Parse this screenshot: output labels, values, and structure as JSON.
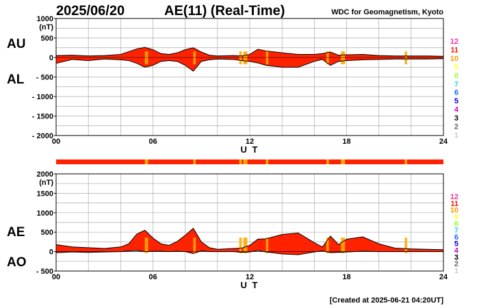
{
  "header": {
    "date": "2025/06/20",
    "title": "AE(11) (Real-Time)",
    "source": "WDC for Geomagnetism, Kyoto"
  },
  "footer": {
    "created": "[Created at 2025-06-21 04:20UT]"
  },
  "xaxis": {
    "label": "U T",
    "ticks": [
      0,
      6,
      12,
      18,
      24
    ],
    "tick_labels": [
      "00",
      "06",
      "12",
      "18",
      "24"
    ]
  },
  "station_legend": {
    "labels": [
      "12",
      "11",
      "10",
      "9",
      "8",
      "7",
      "6",
      "5",
      "4",
      "3",
      "2",
      "1"
    ],
    "colors": [
      "#ff3399",
      "#ff1a00",
      "#ff9900",
      "#ffff33",
      "#99ff33",
      "#33ccff",
      "#1a66ff",
      "#0000cc",
      "#cc00cc",
      "#000000",
      "#666666",
      "#cccccc"
    ]
  },
  "colors": {
    "fill_main": "#ff2200",
    "fill_alt": "#ffaa00",
    "line": "#000000",
    "grid": "#aaaaaa"
  },
  "chart_data": [
    {
      "type": "area",
      "name": "AU/AL",
      "top_label": "AU",
      "bottom_label": "AL",
      "ylim": [
        -2000,
        1000
      ],
      "yticks": [
        1000,
        500,
        0,
        -500,
        -1000,
        -1500,
        -2000
      ],
      "ytick_labels": [
        "1000",
        "500",
        "0",
        "- 500",
        "- 1000",
        "- 1500",
        "- 2000"
      ],
      "unit": "(nT)",
      "xlim": [
        0,
        24
      ],
      "series": [
        {
          "name": "AU",
          "x": [
            0,
            1,
            2,
            3,
            4,
            4.5,
            5,
            5.5,
            6,
            6.5,
            7,
            7.5,
            8,
            8.5,
            9,
            9.5,
            10,
            11,
            11.5,
            12,
            12.5,
            13,
            14,
            15,
            16,
            16.5,
            17,
            17.5,
            18,
            19,
            20,
            21,
            22,
            23,
            24
          ],
          "values": [
            50,
            60,
            40,
            50,
            80,
            150,
            220,
            260,
            200,
            100,
            80,
            120,
            200,
            250,
            140,
            60,
            40,
            50,
            40,
            80,
            210,
            170,
            120,
            80,
            80,
            100,
            140,
            60,
            70,
            80,
            50,
            40,
            40,
            40,
            30
          ]
        },
        {
          "name": "AL",
          "x": [
            0,
            1,
            2,
            3,
            4,
            4.5,
            5,
            5.5,
            6,
            6.5,
            7,
            7.5,
            8,
            8.5,
            9,
            9.5,
            10,
            11,
            11.5,
            12,
            12.5,
            13,
            14,
            15,
            16,
            16.5,
            17,
            17.5,
            18,
            19,
            20,
            21,
            22,
            23,
            24
          ],
          "values": [
            -150,
            -50,
            -80,
            -40,
            -60,
            -80,
            -150,
            -250,
            -200,
            -100,
            -80,
            -100,
            -200,
            -350,
            -100,
            -60,
            -40,
            -50,
            -80,
            -100,
            -140,
            -200,
            -250,
            -250,
            -100,
            -50,
            -200,
            -100,
            -80,
            -60,
            -50,
            -40,
            -40,
            -40,
            -30
          ]
        }
      ]
    },
    {
      "type": "area",
      "name": "AE/AO",
      "top_label": "AE",
      "bottom_label": "AO",
      "ylim": [
        -500,
        2000
      ],
      "yticks": [
        2000,
        1500,
        1000,
        500,
        0,
        -500
      ],
      "ytick_labels": [
        "2000",
        "1500",
        "1000",
        "500",
        "0",
        "- 500"
      ],
      "unit": "(nT)",
      "xlim": [
        0,
        24
      ],
      "series": [
        {
          "name": "AE",
          "x": [
            0,
            1,
            2,
            3,
            4,
            4.5,
            5,
            5.5,
            6,
            6.5,
            7,
            7.5,
            8,
            8.5,
            9,
            9.5,
            10,
            11,
            11.5,
            12,
            12.5,
            13,
            14,
            15,
            16,
            16.5,
            17,
            17.5,
            18,
            19,
            20,
            21,
            22,
            23,
            24
          ],
          "values": [
            180,
            120,
            100,
            80,
            120,
            200,
            450,
            550,
            350,
            200,
            160,
            260,
            420,
            600,
            250,
            100,
            60,
            80,
            90,
            160,
            320,
            330,
            440,
            480,
            230,
            120,
            400,
            180,
            320,
            380,
            200,
            90,
            70,
            60,
            50
          ]
        },
        {
          "name": "AO",
          "x": [
            0,
            1,
            2,
            3,
            4,
            4.5,
            5,
            5.5,
            6,
            6.5,
            7,
            7.5,
            8,
            8.5,
            9,
            9.5,
            10,
            11,
            11.5,
            12,
            12.5,
            13,
            14,
            15,
            16,
            16.5,
            17,
            17.5,
            18,
            19,
            20,
            21,
            22,
            23,
            24
          ],
          "values": [
            -30,
            -10,
            -20,
            -10,
            0,
            20,
            30,
            0,
            10,
            10,
            0,
            10,
            0,
            -50,
            20,
            0,
            0,
            0,
            -20,
            -10,
            30,
            -10,
            -60,
            -80,
            -10,
            20,
            -30,
            -20,
            -10,
            10,
            0,
            0,
            0,
            0,
            0
          ]
        }
      ],
      "reduced_station_intervals": [
        [
          5.5,
          5.7
        ],
        [
          8.5,
          8.65
        ],
        [
          11.35,
          11.5
        ],
        [
          11.6,
          11.85
        ],
        [
          13.0,
          13.15
        ],
        [
          16.75,
          16.9
        ],
        [
          17.65,
          17.9
        ],
        [
          21.6,
          21.75
        ]
      ]
    }
  ]
}
